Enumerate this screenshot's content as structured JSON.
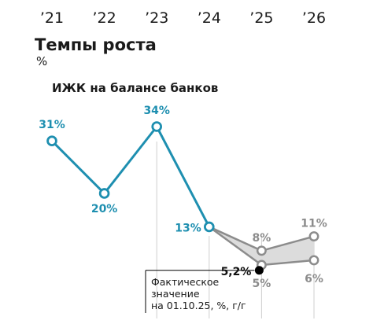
{
  "header": {
    "title": "Темпы роста",
    "unit": "%",
    "subtitle": "ИЖК на балансе банков"
  },
  "chart_data": {
    "type": "line",
    "title": "Темпы роста",
    "ylabel": "%",
    "categories": [
      "’21",
      "’22",
      "’23",
      "’24",
      "’25",
      "’26"
    ],
    "series": [
      {
        "name": "ИЖК на балансе банков",
        "x": [
          "’21",
          "’22",
          "’23",
          "’24"
        ],
        "values": [
          31,
          20,
          34,
          13
        ],
        "labels": [
          "31%",
          "20%",
          "34%",
          "13%"
        ],
        "color": "#1e8fb0"
      },
      {
        "x": [
          "’24",
          "’25",
          "’26"
        ],
        "values": [
          13,
          8,
          11
        ],
        "labels": [
          "",
          "8%",
          "11%"
        ],
        "color": "#8c8c8c"
      },
      {
        "x": [
          "’24",
          "’25",
          "’26"
        ],
        "values": [
          13,
          5,
          6
        ],
        "labels": [
          "",
          "5%",
          "6%"
        ],
        "color": "#8c8c8c"
      }
    ],
    "current_point": {
      "x": "’25",
      "value": 5.2,
      "label": "5,2%",
      "note": [
        "Фактическое",
        "значение",
        "на 01.10.25, %, г/г"
      ]
    },
    "grid": false,
    "legend": "none",
    "colors": {
      "actual": "#1e8fb0",
      "forecast": "#8c8c8c",
      "forecast_band": "#dcdcdc",
      "current": "#000000",
      "gridline": "#cfcfcf"
    }
  }
}
